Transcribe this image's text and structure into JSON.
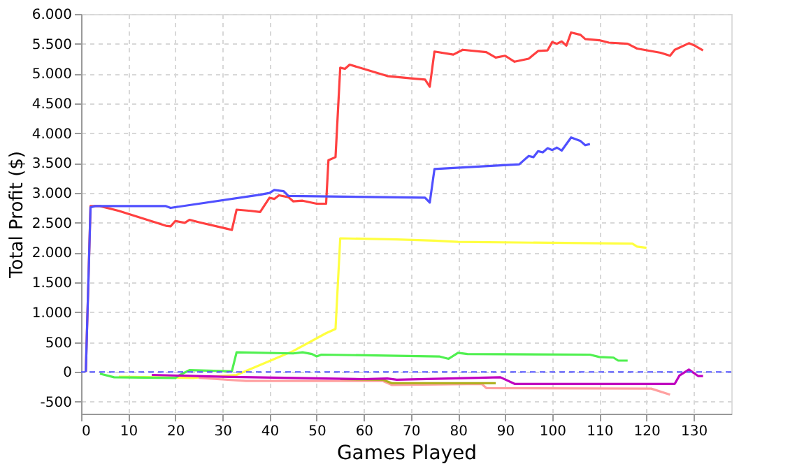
{
  "chart_data": {
    "type": "line",
    "xlabel": "Games Played",
    "ylabel": "Total Profit ($)",
    "xlim": [
      0,
      138
    ],
    "ylim": [
      -700,
      6000
    ],
    "xticks": [
      0,
      10,
      20,
      30,
      40,
      50,
      60,
      70,
      80,
      90,
      100,
      110,
      120,
      130
    ],
    "yticks": [
      {
        "value": -500,
        "label": "-500"
      },
      0,
      500,
      {
        "value": 1000,
        "label": "1.000"
      },
      {
        "value": 1500,
        "label": "1.500"
      },
      {
        "value": 2000,
        "label": "2.000"
      },
      {
        "value": 2500,
        "label": "2.500"
      },
      {
        "value": 3000,
        "label": "3.000"
      },
      {
        "value": 3500,
        "label": "3.500"
      },
      {
        "value": 4000,
        "label": "4.000"
      },
      {
        "value": 4500,
        "label": "4.500"
      },
      {
        "value": 5000,
        "label": "5.000"
      },
      {
        "value": 5500,
        "label": "5.500"
      },
      {
        "value": 6000,
        "label": "6.000"
      }
    ],
    "grid": true,
    "legend": false,
    "marker": "none",
    "line_style": "solid",
    "ref_lines": [
      {
        "axis": "y",
        "value": 0,
        "color": "#5050ff",
        "line_style": "dashed"
      }
    ],
    "series": [
      {
        "color": "#ff4040",
        "x": [
          1,
          2,
          4,
          8,
          12,
          18,
          19,
          20,
          22,
          23,
          25,
          31,
          32,
          33,
          36,
          38,
          40,
          41,
          42,
          44,
          45,
          47,
          50,
          52,
          52.5,
          54,
          55,
          56,
          57,
          65,
          70,
          73,
          74,
          75,
          79,
          81,
          86,
          88,
          90,
          92,
          95,
          97,
          99,
          100,
          101,
          102,
          103,
          104,
          106,
          107,
          110,
          112,
          116,
          118,
          123,
          125,
          126,
          129,
          130,
          132
        ],
        "values": [
          0,
          2780,
          2780,
          2700,
          2600,
          2450,
          2440,
          2530,
          2500,
          2550,
          2510,
          2400,
          2380,
          2720,
          2700,
          2680,
          2920,
          2900,
          2960,
          2930,
          2860,
          2870,
          2820,
          2820,
          3550,
          3600,
          5100,
          5080,
          5150,
          4960,
          4920,
          4900,
          4780,
          5370,
          5320,
          5400,
          5360,
          5270,
          5300,
          5200,
          5250,
          5380,
          5390,
          5530,
          5500,
          5540,
          5470,
          5690,
          5650,
          5580,
          5560,
          5520,
          5500,
          5420,
          5350,
          5300,
          5400,
          5510,
          5480,
          5390
        ]
      },
      {
        "color": "#5050ff",
        "x": [
          1,
          2,
          3,
          18,
          19,
          38,
          40,
          41,
          43,
          44,
          73,
          74,
          75,
          93,
          94,
          95,
          96,
          97,
          98,
          99,
          100,
          101,
          102,
          104,
          106,
          107,
          108
        ],
        "values": [
          0,
          2760,
          2780,
          2780,
          2750,
          2970,
          3000,
          3050,
          3030,
          2950,
          2920,
          2840,
          3400,
          3480,
          3550,
          3620,
          3600,
          3700,
          3680,
          3750,
          3720,
          3760,
          3710,
          3930,
          3870,
          3800,
          3820
        ]
      },
      {
        "color": "#ffff40",
        "x": [
          8,
          24,
          33,
          45,
          52,
          54,
          55,
          67,
          75,
          80,
          117,
          118,
          120
        ],
        "values": [
          -80,
          -100,
          -50,
          350,
          650,
          720,
          2240,
          2220,
          2200,
          2180,
          2150,
          2100,
          2080
        ]
      },
      {
        "color": "#50f050",
        "x": [
          4,
          7,
          20,
          21,
          23,
          32,
          33,
          45,
          47,
          49,
          50,
          51,
          76,
          78,
          80,
          82,
          108,
          110,
          113,
          114,
          116
        ],
        "values": [
          -30,
          -90,
          -100,
          -50,
          30,
          10,
          330,
          310,
          330,
          300,
          260,
          290,
          260,
          220,
          320,
          300,
          290,
          250,
          240,
          190,
          190
        ]
      },
      {
        "color": "#ffa0a0",
        "x": [
          25,
          35,
          64,
          66,
          85,
          86,
          121,
          125
        ],
        "values": [
          -100,
          -150,
          -150,
          -220,
          -200,
          -270,
          -280,
          -380
        ]
      },
      {
        "color": "#b0b020",
        "x": [
          55,
          64,
          66,
          88
        ],
        "values": [
          -120,
          -130,
          -190,
          -190
        ]
      },
      {
        "color": "#c000c0",
        "x": [
          15,
          30,
          60,
          65,
          67,
          89,
          92,
          126,
          127,
          129,
          131,
          132
        ],
        "values": [
          -50,
          -80,
          -120,
          -110,
          -130,
          -90,
          -200,
          -200,
          -60,
          40,
          -70,
          -70
        ]
      }
    ]
  }
}
